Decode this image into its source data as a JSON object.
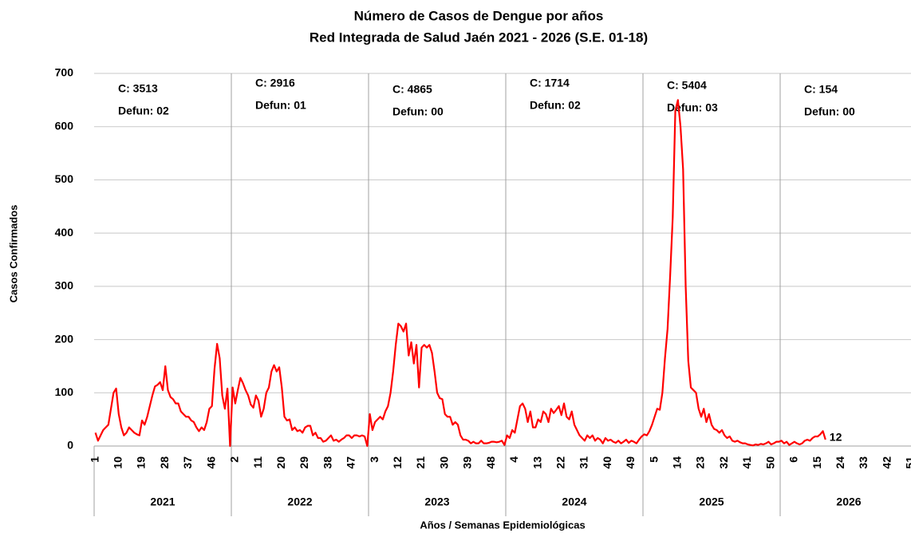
{
  "chart_data": {
    "type": "line",
    "title": "Número de Casos de Dengue por años",
    "subtitle": "Red Integrada de Salud Jaén 2021 - 2026 (S.E. 01-18)",
    "y_label": "Casos Confirmados",
    "x_label": "Años / Semanas Epidemiológicas",
    "color": "#ff0000",
    "grid": true,
    "ylim": [
      0,
      700
    ],
    "yticks": [
      0,
      100,
      200,
      300,
      400,
      500,
      600,
      700
    ],
    "groups": [
      "2021",
      "2022",
      "2023",
      "2024",
      "2025",
      "2026"
    ],
    "annotations": [
      {
        "cases": "C: 3513",
        "deaths": "Defun: 02"
      },
      {
        "cases": "C: 2916",
        "deaths": "Defun: 01"
      },
      {
        "cases": "C: 4865",
        "deaths": "Defun: 00"
      },
      {
        "cases": "C: 1714",
        "deaths": "Defun: 02"
      },
      {
        "cases": "C: 5404",
        "deaths": "Defun: 03"
      },
      {
        "cases": "C: 154",
        "deaths": "Defun: 00"
      }
    ],
    "categories": [
      1,
      null,
      null,
      null,
      null,
      null,
      null,
      null,
      null,
      10,
      null,
      null,
      null,
      null,
      null,
      null,
      null,
      null,
      19,
      null,
      null,
      null,
      null,
      null,
      null,
      null,
      null,
      28,
      null,
      null,
      null,
      null,
      null,
      null,
      null,
      null,
      37,
      null,
      null,
      null,
      null,
      null,
      null,
      null,
      null,
      46,
      null,
      null,
      null,
      null,
      null,
      null,
      null,
      null,
      2,
      null,
      null,
      null,
      null,
      null,
      null,
      null,
      null,
      11,
      null,
      null,
      null,
      null,
      null,
      null,
      null,
      null,
      20,
      null,
      null,
      null,
      null,
      null,
      null,
      null,
      null,
      29,
      null,
      null,
      null,
      null,
      null,
      null,
      null,
      null,
      38,
      null,
      null,
      null,
      null,
      null,
      null,
      null,
      null,
      47,
      null,
      null,
      null,
      null,
      null,
      null,
      null,
      null,
      3,
      null,
      null,
      null,
      null,
      null,
      null,
      null,
      null,
      12,
      null,
      null,
      null,
      null,
      null,
      null,
      null,
      null,
      21,
      null,
      null,
      null,
      null,
      null,
      null,
      null,
      null,
      30,
      null,
      null,
      null,
      null,
      null,
      null,
      null,
      null,
      39,
      null,
      null,
      null,
      null,
      null,
      null,
      null,
      null,
      48,
      null,
      null,
      null,
      null,
      null,
      null,
      null,
      null,
      4,
      null,
      null,
      null,
      null,
      null,
      null,
      null,
      null,
      13,
      null,
      null,
      null,
      null,
      null,
      null,
      null,
      null,
      22,
      null,
      null,
      null,
      null,
      null,
      null,
      null,
      null,
      31,
      null,
      null,
      null,
      null,
      null,
      null,
      null,
      null,
      40,
      null,
      null,
      null,
      null,
      null,
      null,
      null,
      null,
      49,
      null,
      null,
      null,
      null,
      null,
      null,
      null,
      null,
      5,
      null,
      null,
      null,
      null,
      null,
      null,
      null,
      null,
      14,
      null,
      null,
      null,
      null,
      null,
      null,
      null,
      null,
      23,
      null,
      null,
      null,
      null,
      null,
      null,
      null,
      null,
      32,
      null,
      null,
      null,
      null,
      null,
      null,
      null,
      null,
      41,
      null,
      null,
      null,
      null,
      null,
      null,
      null,
      null,
      50,
      null,
      null,
      null,
      null,
      null,
      null,
      null,
      null,
      6,
      null,
      null,
      null,
      null,
      null,
      null,
      null,
      null,
      15,
      null,
      null,
      null,
      null,
      null,
      null,
      null,
      null,
      24,
      null,
      null,
      null,
      null,
      null,
      null,
      null,
      null,
      33,
      null,
      null,
      null,
      null,
      null,
      null,
      null,
      null,
      42,
      null,
      null,
      null,
      null,
      null,
      null,
      null,
      null,
      51,
      null,
      null
    ],
    "values": [
      25,
      10,
      20,
      30,
      35,
      40,
      70,
      100,
      108,
      60,
      35,
      20,
      25,
      35,
      30,
      25,
      22,
      20,
      48,
      40,
      55,
      75,
      95,
      112,
      115,
      120,
      105,
      150,
      105,
      92,
      88,
      80,
      80,
      65,
      60,
      55,
      55,
      48,
      45,
      35,
      28,
      35,
      30,
      45,
      70,
      75,
      145,
      192,
      165,
      95,
      70,
      108,
      0,
      110,
      80,
      105,
      128,
      118,
      105,
      95,
      78,
      72,
      95,
      85,
      55,
      70,
      100,
      110,
      140,
      152,
      140,
      148,
      110,
      55,
      48,
      50,
      30,
      35,
      28,
      30,
      25,
      35,
      38,
      38,
      20,
      25,
      15,
      15,
      8,
      10,
      15,
      20,
      10,
      12,
      8,
      12,
      15,
      20,
      20,
      15,
      20,
      20,
      18,
      20,
      18,
      0,
      60,
      30,
      45,
      50,
      55,
      50,
      65,
      75,
      100,
      140,
      190,
      230,
      225,
      215,
      230,
      170,
      195,
      155,
      190,
      110,
      185,
      190,
      185,
      190,
      175,
      140,
      100,
      90,
      88,
      60,
      55,
      55,
      40,
      45,
      40,
      20,
      12,
      12,
      10,
      5,
      8,
      5,
      5,
      10,
      5,
      5,
      6,
      8,
      8,
      7,
      8,
      10,
      2,
      20,
      15,
      30,
      25,
      50,
      75,
      80,
      70,
      45,
      65,
      35,
      35,
      50,
      45,
      65,
      60,
      45,
      70,
      62,
      68,
      75,
      58,
      80,
      55,
      50,
      65,
      40,
      30,
      20,
      15,
      10,
      20,
      15,
      20,
      10,
      15,
      12,
      5,
      15,
      10,
      12,
      8,
      6,
      10,
      5,
      8,
      12,
      6,
      10,
      8,
      5,
      12,
      18,
      22,
      20,
      28,
      40,
      55,
      70,
      68,
      100,
      165,
      220,
      320,
      430,
      630,
      650,
      600,
      520,
      300,
      160,
      110,
      105,
      100,
      70,
      55,
      70,
      45,
      60,
      40,
      32,
      30,
      25,
      30,
      20,
      15,
      18,
      10,
      8,
      10,
      7,
      5,
      5,
      3,
      2,
      1,
      3,
      2,
      4,
      3,
      5,
      8,
      3,
      5,
      8,
      8,
      10,
      5,
      8,
      2,
      5,
      8,
      5,
      3,
      5,
      10,
      12,
      10,
      15,
      18,
      18,
      22,
      28,
      12,
      null,
      null,
      null,
      null,
      null,
      null,
      null,
      null,
      null,
      null,
      null,
      null,
      null,
      null,
      null,
      null,
      null,
      null,
      null,
      null,
      null,
      null,
      null,
      null,
      null,
      null,
      null,
      null,
      null,
      null,
      null,
      null,
      null,
      null,
      null
    ]
  }
}
